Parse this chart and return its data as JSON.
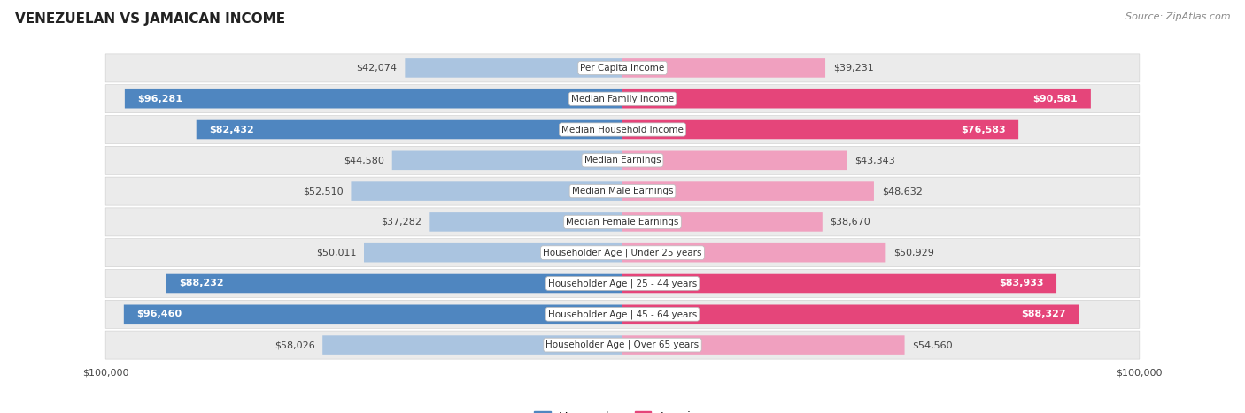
{
  "title": "VENEZUELAN VS JAMAICAN INCOME",
  "source": "Source: ZipAtlas.com",
  "categories": [
    "Per Capita Income",
    "Median Family Income",
    "Median Household Income",
    "Median Earnings",
    "Median Male Earnings",
    "Median Female Earnings",
    "Householder Age | Under 25 years",
    "Householder Age | 25 - 44 years",
    "Householder Age | 45 - 64 years",
    "Householder Age | Over 65 years"
  ],
  "venezuelan_values": [
    42074,
    96281,
    82432,
    44580,
    52510,
    37282,
    50011,
    88232,
    96460,
    58026
  ],
  "jamaican_values": [
    39231,
    90581,
    76583,
    43343,
    48632,
    38670,
    50929,
    83933,
    88327,
    54560
  ],
  "max_value": 100000,
  "venezuelan_color_high": "#4f86c0",
  "venezuelan_color_low": "#aac4e0",
  "jamaican_color_high": "#e5457a",
  "jamaican_color_low": "#f0a0bf",
  "row_bg_color": "#ebebeb",
  "label_color_white": "#ffffff",
  "label_color_dark": "#444444",
  "title_fontsize": 11,
  "source_fontsize": 8,
  "bar_label_fontsize": 8,
  "cat_label_fontsize": 7.5,
  "legend_fontsize": 9,
  "axis_label_fontsize": 8,
  "high_threshold": 62000
}
